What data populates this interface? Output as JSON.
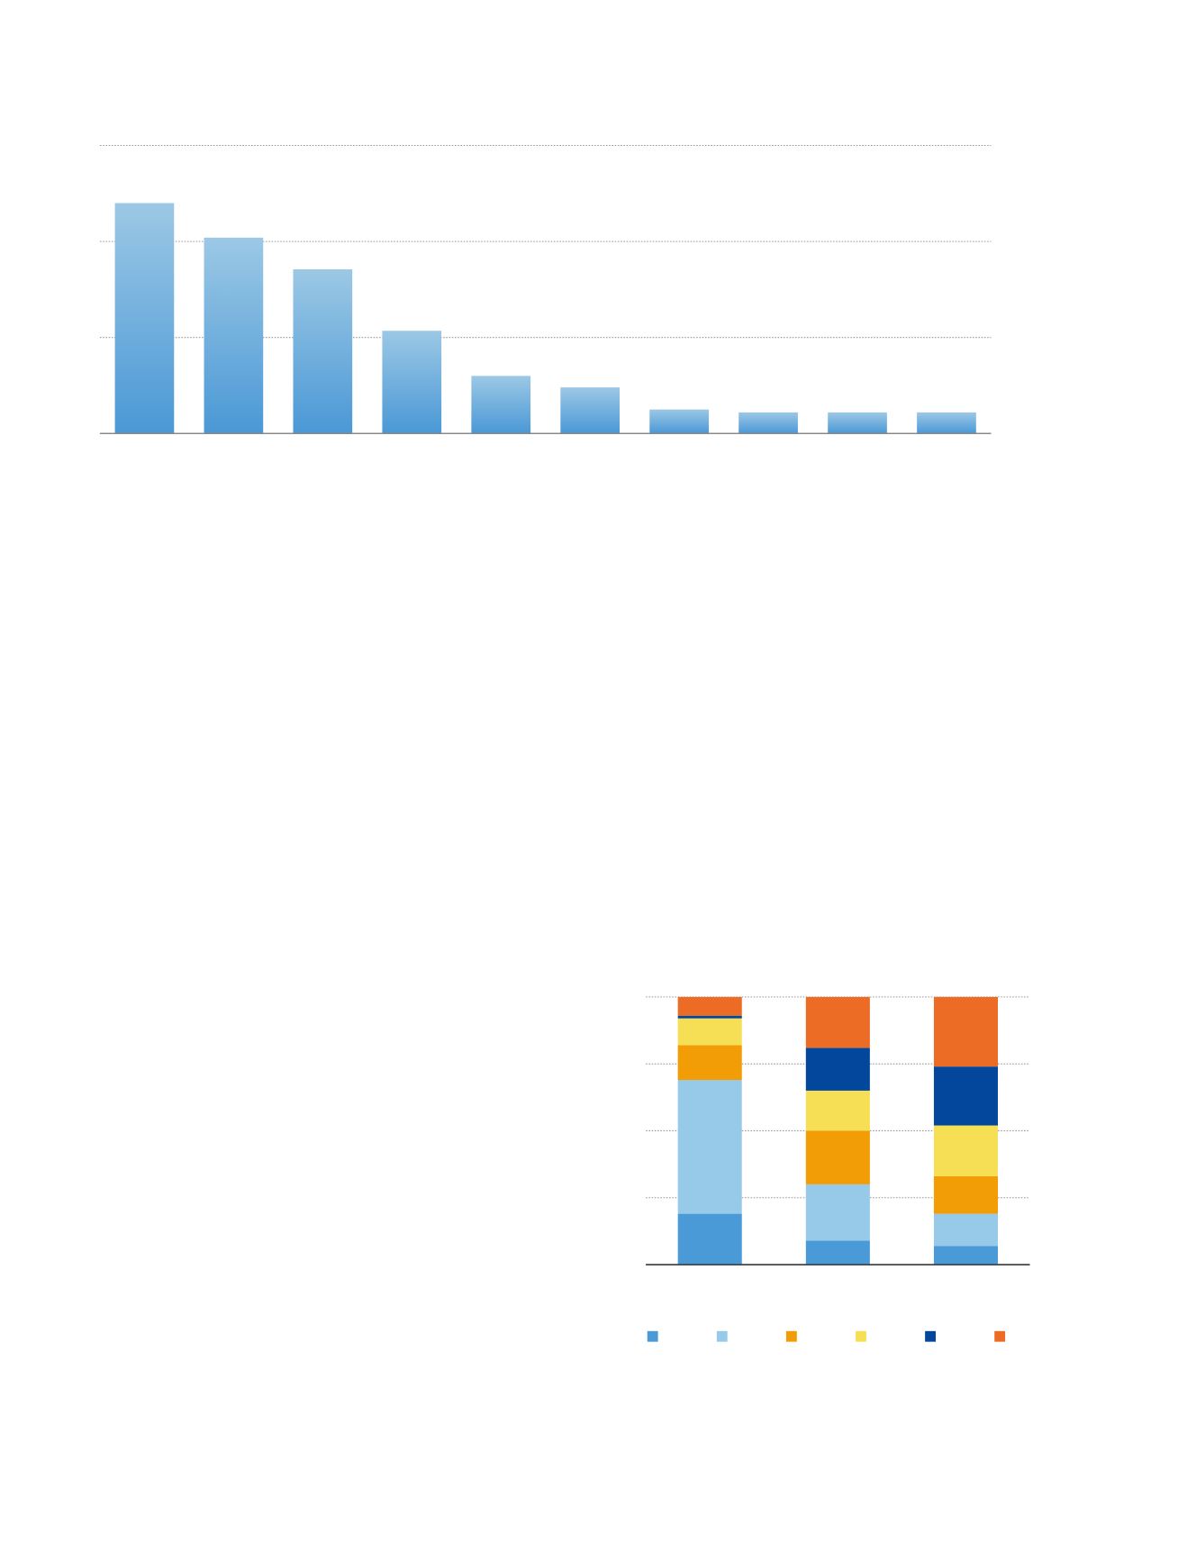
{
  "chart_data": [
    {
      "type": "bar",
      "categories": [
        null,
        null,
        null,
        null,
        null,
        null,
        null,
        null,
        null,
        null
      ],
      "values": [
        2.4,
        2.04,
        1.71,
        1.07,
        0.6,
        0.48,
        0.25,
        0.22,
        0.22,
        0.22
      ],
      "color": "#4a98d6",
      "ylim": [
        0,
        3
      ],
      "yticks": [
        0,
        1,
        2,
        3
      ],
      "grid": true
    },
    {
      "type": "stacked_bar",
      "categories": [
        null,
        null,
        null
      ],
      "series": [
        {
          "color": "#4a9ad8",
          "values": [
            19,
            9,
            7
          ]
        },
        {
          "color": "#97c9e8",
          "values": [
            50,
            21,
            12
          ]
        },
        {
          "color": "#f29c06",
          "values": [
            13,
            20,
            14
          ]
        },
        {
          "color": "#f6de55",
          "values": [
            10,
            15,
            19
          ]
        },
        {
          "color": "#03479c",
          "values": [
            1,
            16,
            22
          ]
        },
        {
          "color": "#ec6b25",
          "values": [
            7,
            19,
            26
          ]
        }
      ],
      "ylim": [
        0,
        100
      ],
      "yticks": [
        0,
        25,
        50,
        75,
        100
      ],
      "grid": true,
      "legend": "bottom"
    }
  ]
}
